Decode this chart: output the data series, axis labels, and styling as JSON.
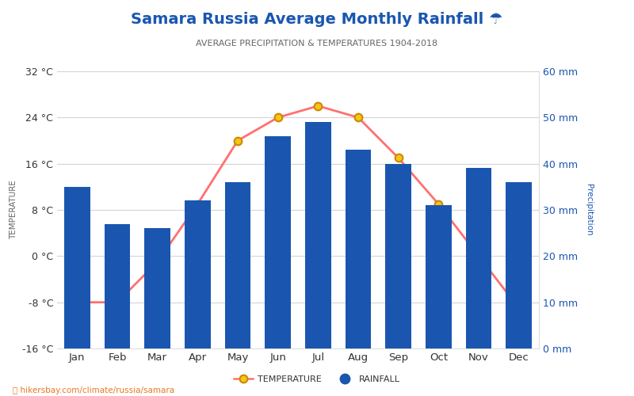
{
  "title": "Samara Russia Average Monthly Rainfall ☂",
  "subtitle": "AVERAGE PRECIPITATION & TEMPERATURES 1904-2018",
  "months": [
    "Jan",
    "Feb",
    "Mar",
    "Apr",
    "May",
    "Jun",
    "Jul",
    "Aug",
    "Sep",
    "Oct",
    "Nov",
    "Dec"
  ],
  "rainfall_mm": [
    35,
    27,
    26,
    32,
    36,
    46,
    49,
    43,
    40,
    31,
    39,
    36
  ],
  "temperature_c": [
    -8,
    -8,
    -1,
    9,
    20,
    24,
    26,
    24,
    17,
    9,
    0,
    -9
  ],
  "bar_color": "#1a56b0",
  "line_color": "#ff7070",
  "marker_face_color": "#f5c518",
  "marker_edge_color": "#cc8800",
  "title_color": "#1a56b0",
  "subtitle_color": "#666666",
  "temp_ylabel_color": "#666666",
  "right_axis_color": "#1a56b0",
  "temp_ylim": [
    -16,
    32
  ],
  "temp_yticks": [
    -16,
    -8,
    0,
    8,
    16,
    24,
    32
  ],
  "rain_ylim": [
    0,
    60
  ],
  "rain_yticks": [
    0,
    10,
    20,
    30,
    40,
    50,
    60
  ],
  "footer_text": "hikersbay.com/climate/russia/samara",
  "background_color": "#ffffff",
  "grid_color": "#d4d4d4"
}
